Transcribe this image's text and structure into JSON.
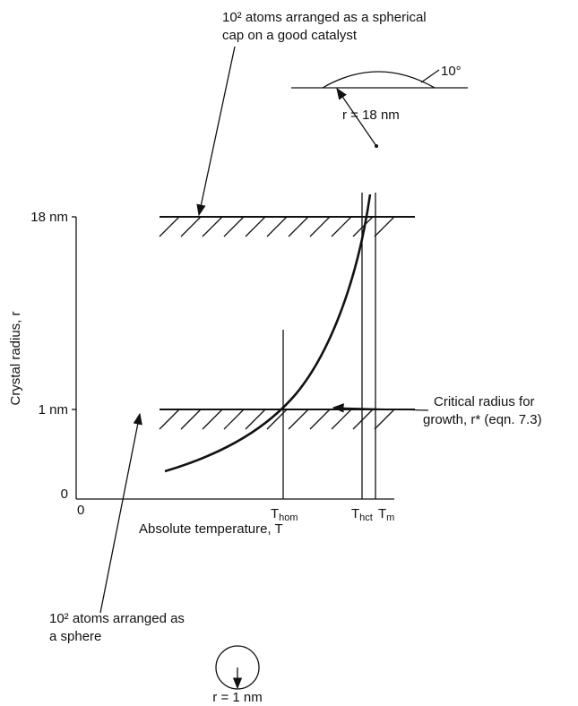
{
  "top_note": {
    "lines": [
      "10² atoms arranged as a spherical",
      "cap on a good catalyst"
    ]
  },
  "cap_inset": {
    "angle": "10°",
    "radius": "r = 18 nm"
  },
  "y_axis": {
    "label": "Crystal radius, r",
    "ticks": [
      "18 nm",
      "1 nm",
      "0"
    ]
  },
  "x_axis": {
    "label": "Absolute temperature, T",
    "origin": "0",
    "markers": [
      {
        "main": "T",
        "sub": "hom"
      },
      {
        "main": "T",
        "sub": "hct"
      },
      {
        "main": "T",
        "sub": "m"
      }
    ]
  },
  "curve_note": {
    "lines": [
      "Critical radius for",
      "growth, r* (eqn. 7.3)"
    ]
  },
  "bottom_note": {
    "lines": [
      "10² atoms arranged as",
      "a sphere"
    ]
  },
  "sphere_inset": {
    "radius": "r = 1 nm"
  }
}
